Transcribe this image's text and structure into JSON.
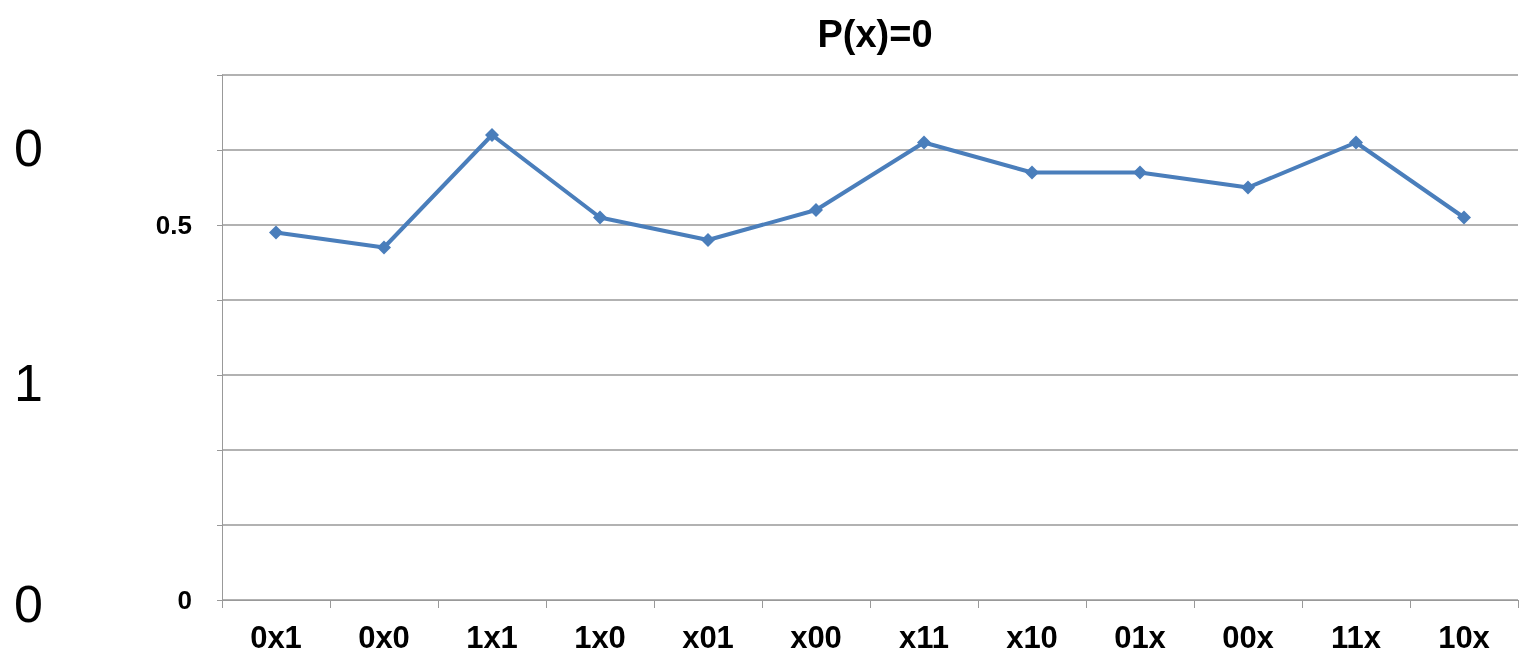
{
  "chart_data": {
    "type": "line",
    "title": "P(x)=0",
    "categories": [
      "0x1",
      "0x0",
      "1x1",
      "1x0",
      "x01",
      "x00",
      "x11",
      "x10",
      "01x",
      "00x",
      "11x",
      "10x"
    ],
    "series": [
      {
        "color": "#4a7ebb",
        "values": [
          0.49,
          0.47,
          0.62,
          0.51,
          0.48,
          0.52,
          0.61,
          0.57,
          0.57,
          0.55,
          0.61,
          0.51
        ]
      }
    ],
    "ylim": [
      0,
      0.7
    ],
    "yticks": [
      0,
      {
        "value": 0.1,
        "label": null
      },
      {
        "value": 0.2,
        "label": null
      },
      {
        "value": 0.3,
        "label": null
      },
      {
        "value": 0.4,
        "label": null
      },
      0.5,
      {
        "value": 0.6,
        "label": null
      },
      {
        "value": 0.7,
        "label": null
      }
    ],
    "grid": "y",
    "marker": "diamond",
    "line_style": "solid",
    "annotations": [
      "0",
      "1",
      "0"
    ]
  }
}
